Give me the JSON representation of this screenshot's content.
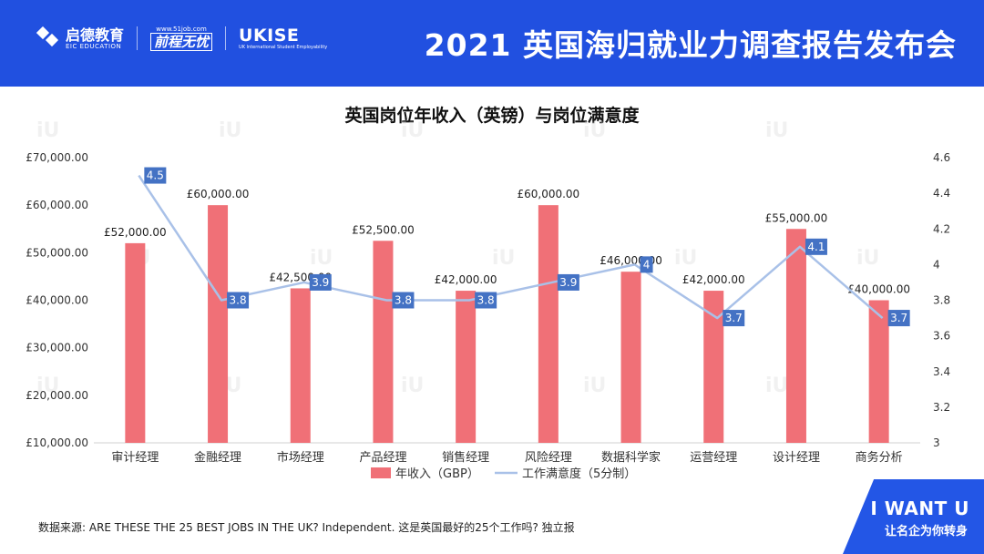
{
  "header": {
    "title": "2021 英国海归就业力调查报告发布会",
    "logos": {
      "eic_name": "启德教育",
      "eic_sub": "EIC EDUCATION",
      "site_url": "www.51job.com",
      "site_brand": "前程无忧",
      "ukise": "UKISE",
      "ukise_sub": "UK International Student Employability"
    }
  },
  "source_text": "数据来源:     ARE THESE THE 25 BEST JOBS IN THE UK? Independent. 这是英国最好的25个工作吗?  独立报",
  "badge": {
    "main": "I WANT U",
    "sub": "让名企为你转身"
  },
  "colors": {
    "bar": "#f07077",
    "line": "#a9c1e8",
    "label_box": "#4472c4",
    "header": "#2150e0"
  },
  "chart_data": {
    "type": "bar",
    "title": "英国岗位年收入（英镑）与岗位满意度",
    "categories": [
      "审计经理",
      "金融经理",
      "市场经理",
      "产品经理",
      "销售经理",
      "风险经理",
      "数据科学家",
      "运营经理",
      "设计经理",
      "商务分析"
    ],
    "series": [
      {
        "name": "年收入（GBP）",
        "type": "bar",
        "axis": "left",
        "values": [
          52000,
          60000,
          42500,
          52500,
          42000,
          60000,
          46000,
          42000,
          55000,
          40000
        ],
        "labels": [
          "£52,000.00",
          "£60,000.00",
          "£42,500.00",
          "£52,500.00",
          "£42,000.00",
          "£60,000.00",
          "£46,000.00",
          "£42,000.00",
          "£55,000.00",
          "£40,000.00"
        ]
      },
      {
        "name": "工作满意度（5分制）",
        "type": "line",
        "axis": "right",
        "values": [
          4.5,
          3.8,
          3.9,
          3.8,
          3.8,
          3.9,
          4.0,
          3.7,
          4.1,
          3.7
        ],
        "labels": [
          "4.5",
          "3.8",
          "3.9",
          "3.8",
          "3.8",
          "3.9",
          "4",
          "3.7",
          "4.1",
          "3.7"
        ]
      }
    ],
    "y_left": {
      "min": 10000,
      "max": 70000,
      "step": 10000,
      "ticks": [
        "£10,000.00",
        "£20,000.00",
        "£30,000.00",
        "£40,000.00",
        "£50,000.00",
        "£60,000.00",
        "£70,000.00"
      ]
    },
    "y_right": {
      "min": 3,
      "max": 4.6,
      "step": 0.2,
      "ticks": [
        "3",
        "3.2",
        "3.4",
        "3.6",
        "3.8",
        "4",
        "4.2",
        "4.4",
        "4.6"
      ]
    },
    "legend": [
      "年收入（GBP）",
      "工作满意度（5分制）"
    ],
    "legend_position": "bottom",
    "grid": false
  }
}
